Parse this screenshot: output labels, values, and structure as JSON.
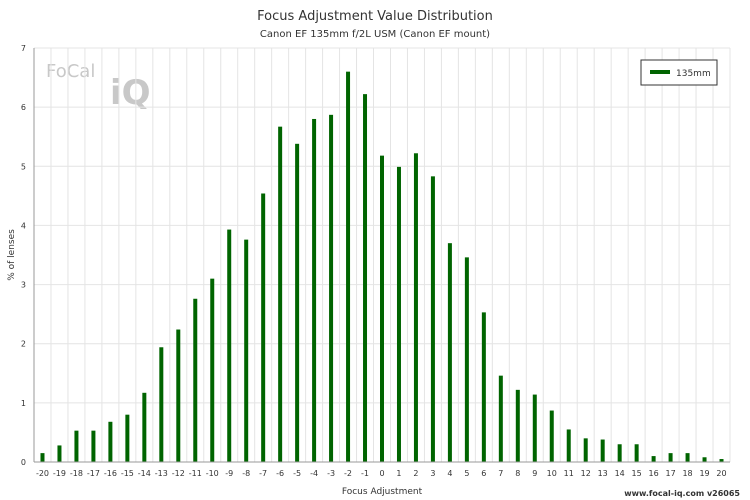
{
  "chart_data": {
    "type": "bar",
    "title": "Focus Adjustment Value Distribution",
    "subtitle": "Canon EF 135mm f/2L USM (Canon EF mount)",
    "xlabel": "Focus Adjustment",
    "ylabel": "% of lenses",
    "ylim": [
      0,
      7
    ],
    "yticks": [
      0,
      1,
      2,
      3,
      4,
      5,
      6,
      7
    ],
    "grid": true,
    "legend_position": "top-right",
    "categories": [
      "-20",
      "-19",
      "-18",
      "-17",
      "-16",
      "-15",
      "-14",
      "-13",
      "-12",
      "-11",
      "-10",
      "-9",
      "-8",
      "-7",
      "-6",
      "-5",
      "-4",
      "-3",
      "-2",
      "-1",
      "0",
      "1",
      "2",
      "3",
      "4",
      "5",
      "6",
      "7",
      "8",
      "9",
      "10",
      "11",
      "12",
      "13",
      "14",
      "15",
      "16",
      "17",
      "18",
      "19",
      "20"
    ],
    "series": [
      {
        "name": "135mm",
        "color": "#006400",
        "values": [
          0.15,
          0.28,
          0.53,
          0.53,
          0.68,
          0.8,
          1.17,
          1.94,
          2.24,
          2.76,
          3.1,
          3.93,
          3.76,
          4.54,
          5.67,
          5.38,
          5.8,
          5.87,
          6.6,
          6.22,
          5.18,
          4.99,
          5.22,
          4.83,
          3.7,
          3.46,
          2.53,
          1.46,
          1.22,
          1.14,
          0.87,
          0.55,
          0.4,
          0.38,
          0.3,
          0.3,
          0.1,
          0.15,
          0.15,
          0.08,
          0.05
        ]
      }
    ]
  },
  "logo": {
    "text_main": "FoCal",
    "text_iq": "iQ"
  },
  "footer": {
    "text": "www.focal-iq.com  v26065"
  }
}
